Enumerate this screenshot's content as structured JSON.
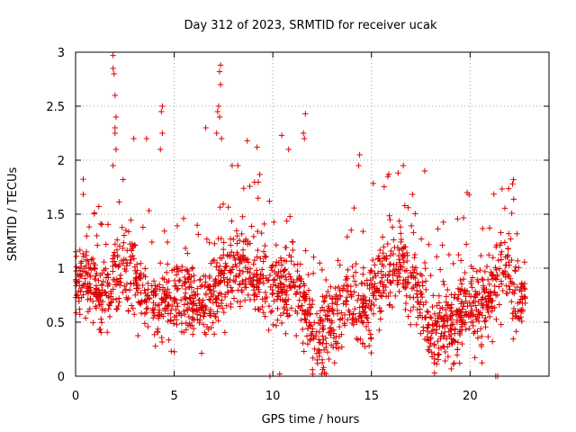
{
  "chart_data": {
    "type": "scatter",
    "title": "Day 312 of 2023, SRMTID for receiver ucak",
    "xlabel": "GPS time / hours",
    "ylabel": "SRMTID / TECUs",
    "xlim": [
      0,
      24
    ],
    "ylim": [
      0,
      3
    ],
    "xticks": [
      0,
      5,
      10,
      15,
      20
    ],
    "xtick_labels": [
      "0",
      "5",
      "10",
      "15",
      "20"
    ],
    "yticks": [
      0,
      0.5,
      1,
      1.5,
      2,
      2.5,
      3
    ],
    "ytick_labels": [
      "0",
      "0.5",
      "1",
      "1.5",
      "2",
      "2.5",
      "3"
    ],
    "grid": true,
    "marker": "+",
    "color": "#dd0000",
    "series": [
      {
        "name": "SRMTID",
        "generator": {
          "count": 1900,
          "x_range": [
            0,
            22.8
          ],
          "seed": 3123
        },
        "anchor_points": [
          {
            "x": 1.9,
            "y": 2.97
          },
          {
            "x": 1.9,
            "y": 2.85
          },
          {
            "x": 1.95,
            "y": 2.8
          },
          {
            "x": 2.0,
            "y": 2.6
          },
          {
            "x": 2.05,
            "y": 2.4
          },
          {
            "x": 2.0,
            "y": 2.3
          },
          {
            "x": 2.0,
            "y": 2.25
          },
          {
            "x": 2.05,
            "y": 2.1
          },
          {
            "x": 1.9,
            "y": 1.95
          },
          {
            "x": 4.4,
            "y": 2.5
          },
          {
            "x": 4.35,
            "y": 2.45
          },
          {
            "x": 4.4,
            "y": 2.25
          },
          {
            "x": 4.3,
            "y": 2.1
          },
          {
            "x": 2.95,
            "y": 2.2
          },
          {
            "x": 3.6,
            "y": 2.2
          },
          {
            "x": 7.35,
            "y": 2.88
          },
          {
            "x": 7.3,
            "y": 2.82
          },
          {
            "x": 7.35,
            "y": 2.7
          },
          {
            "x": 7.25,
            "y": 2.5
          },
          {
            "x": 7.2,
            "y": 2.45
          },
          {
            "x": 7.3,
            "y": 2.4
          },
          {
            "x": 7.15,
            "y": 2.25
          },
          {
            "x": 7.4,
            "y": 2.2
          },
          {
            "x": 6.6,
            "y": 2.3
          },
          {
            "x": 8.7,
            "y": 2.18
          },
          {
            "x": 9.2,
            "y": 2.12
          },
          {
            "x": 11.65,
            "y": 2.43
          },
          {
            "x": 11.55,
            "y": 2.25
          },
          {
            "x": 11.6,
            "y": 2.2
          },
          {
            "x": 10.8,
            "y": 2.1
          },
          {
            "x": 10.45,
            "y": 2.23
          },
          {
            "x": 14.4,
            "y": 2.05
          },
          {
            "x": 14.35,
            "y": 1.95
          },
          {
            "x": 17.7,
            "y": 1.9
          },
          {
            "x": 19.85,
            "y": 1.7
          },
          {
            "x": 19.95,
            "y": 1.68
          },
          {
            "x": 22.2,
            "y": 1.82
          },
          {
            "x": 22.15,
            "y": 1.78
          },
          {
            "x": 9.85,
            "y": 0.0
          },
          {
            "x": 10.35,
            "y": 0.02
          },
          {
            "x": 18.2,
            "y": 0.03
          },
          {
            "x": 21.3,
            "y": 0.0
          },
          {
            "x": 21.4,
            "y": 0.0
          }
        ]
      }
    ]
  }
}
